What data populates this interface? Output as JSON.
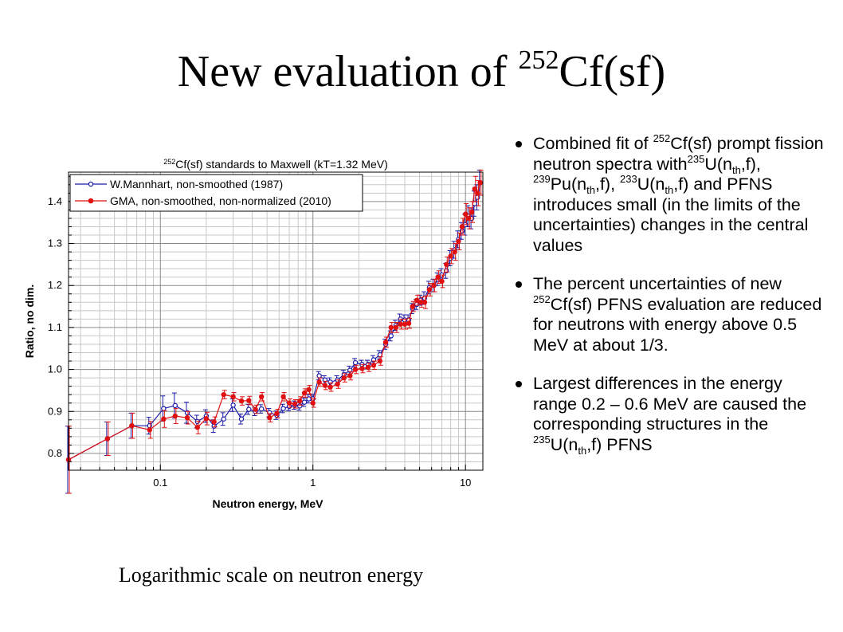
{
  "slide": {
    "title_prefix": "New evaluation of ",
    "title_sup": "252",
    "title_suffix": "Cf(sf)",
    "caption": "Logarithmic scale on neutron energy"
  },
  "bullets": [
    {
      "parts": [
        {
          "t": "Combined fit of "
        },
        {
          "t": "252",
          "s": "sup"
        },
        {
          "t": "Cf(sf) prompt  fission neutron spectra with"
        },
        {
          "t": "235",
          "s": "sup"
        },
        {
          "t": "U(n"
        },
        {
          "t": "th",
          "s": "sub"
        },
        {
          "t": ",f), "
        },
        {
          "t": "239",
          "s": "sup"
        },
        {
          "t": "Pu(n"
        },
        {
          "t": "th",
          "s": "sub"
        },
        {
          "t": ",f), "
        },
        {
          "t": "233",
          "s": "sup"
        },
        {
          "t": "U(n"
        },
        {
          "t": "th",
          "s": "sub"
        },
        {
          "t": ",f) and PFNS introduces small (in the limits of the uncertainties) changes in the central values"
        }
      ]
    },
    {
      "parts": [
        {
          "t": "The percent uncertainties of new "
        },
        {
          "t": "252",
          "s": "sup"
        },
        {
          "t": "Cf(sf) PFNS evaluation are reduced for neutrons with energy above 0.5 MeV at about 1/3."
        }
      ]
    },
    {
      "parts": [
        {
          "t": "Largest differences in the energy range 0.2 – 0.6 MeV are caused the corresponding structures in the "
        },
        {
          "t": "235",
          "s": "sup"
        },
        {
          "t": "U(n"
        },
        {
          "t": "th",
          "s": "sub"
        },
        {
          "t": ",f) PFNS"
        }
      ]
    }
  ],
  "chart_data": {
    "type": "line",
    "title_sup": "252",
    "title_main": "Cf(sf) standards to Maxwell (kT=1.32 MeV)",
    "xlabel": "Neutron energy, MeV",
    "ylabel": "Ratio, no dim.",
    "x_scale": "log",
    "xlim": [
      0.025,
      13
    ],
    "ylim": [
      0.76,
      1.47
    ],
    "x_ticks": [
      {
        "v": 0.1,
        "label": "0.1"
      },
      {
        "v": 1,
        "label": "1"
      },
      {
        "v": 10,
        "label": "10"
      }
    ],
    "y_ticks": [
      {
        "v": 0.8,
        "label": "0.8"
      },
      {
        "v": 0.9,
        "label": "0.9"
      },
      {
        "v": 1.0,
        "label": "1.0"
      },
      {
        "v": 1.1,
        "label": "1.1"
      },
      {
        "v": 1.2,
        "label": "1.2"
      },
      {
        "v": 1.3,
        "label": "1.3"
      },
      {
        "v": 1.4,
        "label": "1.4"
      }
    ],
    "grid": true,
    "legend_position": "top-left",
    "series": [
      {
        "name": "W.Mannhart, non-smoothed (1987)",
        "color": "#1a1aa8",
        "marker": "open-circle",
        "points": [
          [
            0.025,
            0.785,
            0.08
          ],
          [
            0.045,
            0.835,
            0.04
          ],
          [
            0.065,
            0.866,
            0.03
          ],
          [
            0.085,
            0.866,
            0.02
          ],
          [
            0.105,
            0.907,
            0.03
          ],
          [
            0.125,
            0.914,
            0.03
          ],
          [
            0.15,
            0.897,
            0.025
          ],
          [
            0.175,
            0.876,
            0.015
          ],
          [
            0.2,
            0.889,
            0.015
          ],
          [
            0.225,
            0.865,
            0.015
          ],
          [
            0.26,
            0.882,
            0.015
          ],
          [
            0.3,
            0.915,
            0.015
          ],
          [
            0.34,
            0.882,
            0.012
          ],
          [
            0.38,
            0.905,
            0.012
          ],
          [
            0.42,
            0.9,
            0.01
          ],
          [
            0.46,
            0.906,
            0.01
          ],
          [
            0.52,
            0.897,
            0.01
          ],
          [
            0.58,
            0.891,
            0.01
          ],
          [
            0.64,
            0.907,
            0.01
          ],
          [
            0.7,
            0.912,
            0.01
          ],
          [
            0.76,
            0.915,
            0.01
          ],
          [
            0.82,
            0.913,
            0.01
          ],
          [
            0.88,
            0.922,
            0.01
          ],
          [
            0.94,
            0.93,
            0.01
          ],
          [
            1.0,
            0.93,
            0.01
          ],
          [
            1.1,
            0.985,
            0.01
          ],
          [
            1.2,
            0.975,
            0.01
          ],
          [
            1.3,
            0.97,
            0.01
          ],
          [
            1.45,
            0.975,
            0.01
          ],
          [
            1.6,
            0.988,
            0.01
          ],
          [
            1.75,
            0.998,
            0.01
          ],
          [
            1.9,
            1.016,
            0.01
          ],
          [
            2.1,
            1.012,
            0.01
          ],
          [
            2.3,
            1.012,
            0.01
          ],
          [
            2.5,
            1.023,
            0.01
          ],
          [
            2.75,
            1.035,
            0.01
          ],
          [
            3.0,
            1.06,
            0.012
          ],
          [
            3.25,
            1.08,
            0.012
          ],
          [
            3.5,
            1.105,
            0.012
          ],
          [
            3.75,
            1.12,
            0.012
          ],
          [
            4.0,
            1.118,
            0.012
          ],
          [
            4.25,
            1.118,
            0.012
          ],
          [
            4.5,
            1.145,
            0.012
          ],
          [
            4.8,
            1.155,
            0.012
          ],
          [
            5.1,
            1.165,
            0.012
          ],
          [
            5.4,
            1.17,
            0.015
          ],
          [
            5.8,
            1.195,
            0.015
          ],
          [
            6.2,
            1.2,
            0.015
          ],
          [
            6.6,
            1.215,
            0.015
          ],
          [
            7.0,
            1.225,
            0.015
          ],
          [
            7.5,
            1.235,
            0.018
          ],
          [
            8.0,
            1.265,
            0.018
          ],
          [
            8.5,
            1.285,
            0.02
          ],
          [
            9.0,
            1.31,
            0.02
          ],
          [
            9.5,
            1.33,
            0.02
          ],
          [
            10.0,
            1.345,
            0.025
          ],
          [
            10.5,
            1.365,
            0.025
          ],
          [
            11.0,
            1.36,
            0.025
          ],
          [
            11.5,
            1.395,
            0.03
          ],
          [
            12.0,
            1.41,
            0.03
          ],
          [
            12.5,
            1.445,
            0.03
          ]
        ]
      },
      {
        "name": "GMA, non-smoothed, non-normalized (2010)",
        "color": "#e01010",
        "marker": "filled-circle",
        "points": [
          [
            0.025,
            0.785,
            0.08
          ],
          [
            0.045,
            0.835,
            0.04
          ],
          [
            0.065,
            0.866,
            0.03
          ],
          [
            0.085,
            0.856,
            0.02
          ],
          [
            0.105,
            0.882,
            0.02
          ],
          [
            0.125,
            0.889,
            0.018
          ],
          [
            0.15,
            0.885,
            0.015
          ],
          [
            0.175,
            0.862,
            0.015
          ],
          [
            0.2,
            0.883,
            0.015
          ],
          [
            0.225,
            0.875,
            0.012
          ],
          [
            0.26,
            0.94,
            0.01
          ],
          [
            0.3,
            0.935,
            0.01
          ],
          [
            0.34,
            0.925,
            0.01
          ],
          [
            0.38,
            0.926,
            0.01
          ],
          [
            0.42,
            0.905,
            0.01
          ],
          [
            0.46,
            0.935,
            0.01
          ],
          [
            0.52,
            0.885,
            0.01
          ],
          [
            0.58,
            0.895,
            0.01
          ],
          [
            0.64,
            0.935,
            0.01
          ],
          [
            0.7,
            0.92,
            0.01
          ],
          [
            0.76,
            0.918,
            0.01
          ],
          [
            0.82,
            0.925,
            0.01
          ],
          [
            0.88,
            0.944,
            0.01
          ],
          [
            0.94,
            0.952,
            0.01
          ],
          [
            1.0,
            0.92,
            0.01
          ],
          [
            1.1,
            0.97,
            0.01
          ],
          [
            1.2,
            0.962,
            0.01
          ],
          [
            1.3,
            0.958,
            0.01
          ],
          [
            1.45,
            0.965,
            0.01
          ],
          [
            1.6,
            0.98,
            0.01
          ],
          [
            1.75,
            0.985,
            0.01
          ],
          [
            1.9,
            1.0,
            0.01
          ],
          [
            2.1,
            1.002,
            0.01
          ],
          [
            2.3,
            1.005,
            0.01
          ],
          [
            2.5,
            1.01,
            0.01
          ],
          [
            2.75,
            1.02,
            0.01
          ],
          [
            3.0,
            1.065,
            0.012
          ],
          [
            3.25,
            1.1,
            0.012
          ],
          [
            3.5,
            1.1,
            0.012
          ],
          [
            3.75,
            1.108,
            0.012
          ],
          [
            4.0,
            1.108,
            0.012
          ],
          [
            4.25,
            1.11,
            0.012
          ],
          [
            4.5,
            1.15,
            0.012
          ],
          [
            4.8,
            1.165,
            0.012
          ],
          [
            5.1,
            1.16,
            0.012
          ],
          [
            5.4,
            1.16,
            0.015
          ],
          [
            5.8,
            1.19,
            0.015
          ],
          [
            6.2,
            1.2,
            0.015
          ],
          [
            6.6,
            1.22,
            0.015
          ],
          [
            7.0,
            1.21,
            0.015
          ],
          [
            7.5,
            1.25,
            0.018
          ],
          [
            8.0,
            1.27,
            0.018
          ],
          [
            8.5,
            1.28,
            0.02
          ],
          [
            9.0,
            1.305,
            0.02
          ],
          [
            9.5,
            1.34,
            0.02
          ],
          [
            10.0,
            1.37,
            0.025
          ],
          [
            10.5,
            1.36,
            0.025
          ],
          [
            11.0,
            1.375,
            0.025
          ],
          [
            11.5,
            1.43,
            0.03
          ],
          [
            12.0,
            1.42,
            0.03
          ],
          [
            12.5,
            1.445,
            0.03
          ]
        ]
      }
    ]
  }
}
